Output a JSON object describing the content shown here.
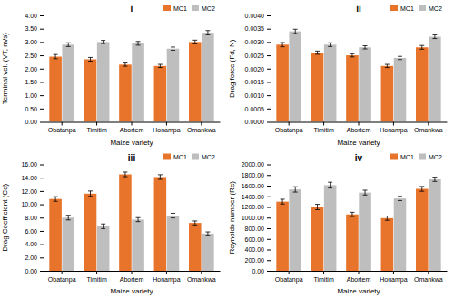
{
  "chart_data": [
    {
      "type": "bar",
      "title": "i",
      "xlabel": "Maize variety",
      "ylabel": "Terminal vel. (VT, m/s)",
      "categories": [
        "Obatanpa",
        "Timitim",
        "Abortem",
        "Honampa",
        "Omankwa"
      ],
      "series": [
        {
          "name": "MC1",
          "color": "#E8732A",
          "values": [
            2.45,
            2.35,
            2.15,
            2.1,
            3.0
          ],
          "errors": [
            0.08,
            0.07,
            0.06,
            0.06,
            0.07
          ]
        },
        {
          "name": "MC2",
          "color": "#BEBEBE",
          "values": [
            2.9,
            3.0,
            2.95,
            2.75,
            3.35
          ],
          "errors": [
            0.07,
            0.06,
            0.07,
            0.06,
            0.08
          ]
        }
      ],
      "ylim": [
        0.0,
        4.0
      ],
      "yticks": [
        {
          "value": 0.0,
          "label": "0.00"
        },
        {
          "value": 0.5,
          "label": "0.50"
        },
        {
          "value": 1.0,
          "label": "1.00"
        },
        {
          "value": 1.5,
          "label": "1.50"
        },
        {
          "value": 2.0,
          "label": "2.00"
        },
        {
          "value": 2.5,
          "label": "2.50"
        },
        {
          "value": 3.0,
          "label": "3.00"
        },
        {
          "value": 3.5,
          "label": "3.50"
        },
        {
          "value": 4.0,
          "label": "4.00"
        }
      ],
      "grid": false,
      "legend": "upper right"
    },
    {
      "type": "bar",
      "title": "ii",
      "xlabel": "Maize variety",
      "ylabel": "Drag force (Fd, N)",
      "categories": [
        "Obatanpa",
        "Timitim",
        "Abortem",
        "Honampa",
        "Omankwa"
      ],
      "series": [
        {
          "name": "MC1",
          "color": "#E8732A",
          "values": [
            0.0029,
            0.0026,
            0.0025,
            0.0021,
            0.0028
          ],
          "errors": [
            8e-05,
            6e-05,
            6e-05,
            6e-05,
            7e-05
          ]
        },
        {
          "name": "MC2",
          "color": "#BEBEBE",
          "values": [
            0.0034,
            0.0029,
            0.0028,
            0.0024,
            0.0032
          ],
          "errors": [
            8e-05,
            7e-05,
            6e-05,
            6e-05,
            7e-05
          ]
        }
      ],
      "ylim": [
        0.0,
        0.004
      ],
      "yticks": [
        {
          "value": 0.0,
          "label": "0.0000"
        },
        {
          "value": 0.0005,
          "label": "0.0005"
        },
        {
          "value": 0.001,
          "label": "0.0010"
        },
        {
          "value": 0.0015,
          "label": "0.0015"
        },
        {
          "value": 0.002,
          "label": "0.0020"
        },
        {
          "value": 0.0025,
          "label": "0.0025"
        },
        {
          "value": 0.003,
          "label": "0.0030"
        },
        {
          "value": 0.0035,
          "label": "0.0035"
        },
        {
          "value": 0.004,
          "label": "0.0040"
        }
      ],
      "grid": false,
      "legend": "upper right"
    },
    {
      "type": "bar",
      "title": "iii",
      "xlabel": "Maize variety",
      "ylabel": "Drag Coefficient (Cd)",
      "categories": [
        "Obatanpa",
        "Timitim",
        "Abortem",
        "Honampa",
        "Omankwa"
      ],
      "series": [
        {
          "name": "MC1",
          "color": "#E8732A",
          "values": [
            10.8,
            11.6,
            14.5,
            14.1,
            7.2
          ],
          "errors": [
            0.35,
            0.4,
            0.35,
            0.35,
            0.3
          ]
        },
        {
          "name": "MC2",
          "color": "#BEBEBE",
          "values": [
            8.0,
            6.7,
            7.7,
            8.3,
            5.6
          ],
          "errors": [
            0.35,
            0.35,
            0.3,
            0.35,
            0.25
          ]
        }
      ],
      "ylim": [
        0.0,
        16.0
      ],
      "yticks": [
        {
          "value": 0.0,
          "label": "0.00"
        },
        {
          "value": 2.0,
          "label": "2.00"
        },
        {
          "value": 4.0,
          "label": "4.00"
        },
        {
          "value": 6.0,
          "label": "6.00"
        },
        {
          "value": 8.0,
          "label": "8.00"
        },
        {
          "value": 10.0,
          "label": "10.00"
        },
        {
          "value": 12.0,
          "label": "12.00"
        },
        {
          "value": 14.0,
          "label": "14.00"
        },
        {
          "value": 16.0,
          "label": "16.00"
        }
      ],
      "grid": false,
      "legend": "upper right"
    },
    {
      "type": "bar",
      "title": "iv",
      "xlabel": "Maize variety",
      "ylabel": "Reynolds number (Re)",
      "categories": [
        "Obatanpa",
        "Timitim",
        "Abortem",
        "Honampa",
        "Omankwa"
      ],
      "series": [
        {
          "name": "MC1",
          "color": "#E8732A",
          "values": [
            1300,
            1200,
            1060,
            990,
            1540
          ],
          "errors": [
            45,
            50,
            40,
            40,
            45
          ]
        },
        {
          "name": "MC2",
          "color": "#BEBEBE",
          "values": [
            1530,
            1610,
            1470,
            1360,
            1720
          ],
          "errors": [
            50,
            55,
            45,
            40,
            40
          ]
        }
      ],
      "ylim": [
        0.0,
        2000.0
      ],
      "yticks": [
        {
          "value": 0.0,
          "label": "0.00"
        },
        {
          "value": 200.0,
          "label": "200.00"
        },
        {
          "value": 400.0,
          "label": "400.00"
        },
        {
          "value": 600.0,
          "label": "600.00"
        },
        {
          "value": 800.0,
          "label": "800.00"
        },
        {
          "value": 1000.0,
          "label": "1000.00"
        },
        {
          "value": 1200.0,
          "label": "1200.00"
        },
        {
          "value": 1400.0,
          "label": "1400.00"
        },
        {
          "value": 1600.0,
          "label": "1600.00"
        },
        {
          "value": 1800.0,
          "label": "1800.00"
        },
        {
          "value": 2000.0,
          "label": "2000.00"
        }
      ],
      "grid": false,
      "legend": "upper right"
    }
  ]
}
